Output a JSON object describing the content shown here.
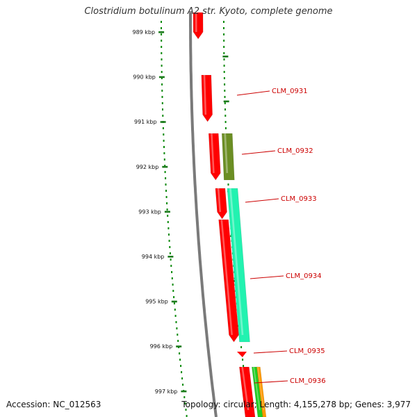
{
  "title": "Clostridium botulinum A2 str. Kyoto, complete genome",
  "footer": {
    "accession": "Accession: NC_012563",
    "summary": "Topology: circular; Length: 4,155,278 bp; Genes: 3,977"
  },
  "colors": {
    "backbone": "#7a7a7a",
    "tick_dotted": "#0a8a0a",
    "tick_major": "#1a7a1a",
    "gene_red": "#ff0000",
    "gene_olive": "#6b8e23",
    "gene_aqua": "#22f2b0",
    "gene_orange": "#ff9900",
    "gene_green": "#22cc22",
    "label_red": "#cc0000"
  },
  "ticks": [
    {
      "label": "989 kbp"
    },
    {
      "label": "990 kbp"
    },
    {
      "label": "991 kbp"
    },
    {
      "label": "992 kbp"
    },
    {
      "label": "993 kbp"
    },
    {
      "label": "994 kbp"
    },
    {
      "label": "995 kbp"
    },
    {
      "label": "996 kbp"
    },
    {
      "label": "997 kbp"
    }
  ],
  "gene_labels": [
    {
      "name": "CLM_0931"
    },
    {
      "name": "CLM_0932"
    },
    {
      "name": "CLM_0933"
    },
    {
      "name": "CLM_0934"
    },
    {
      "name": "CLM_0935"
    },
    {
      "name": "CLM_0936"
    }
  ]
}
